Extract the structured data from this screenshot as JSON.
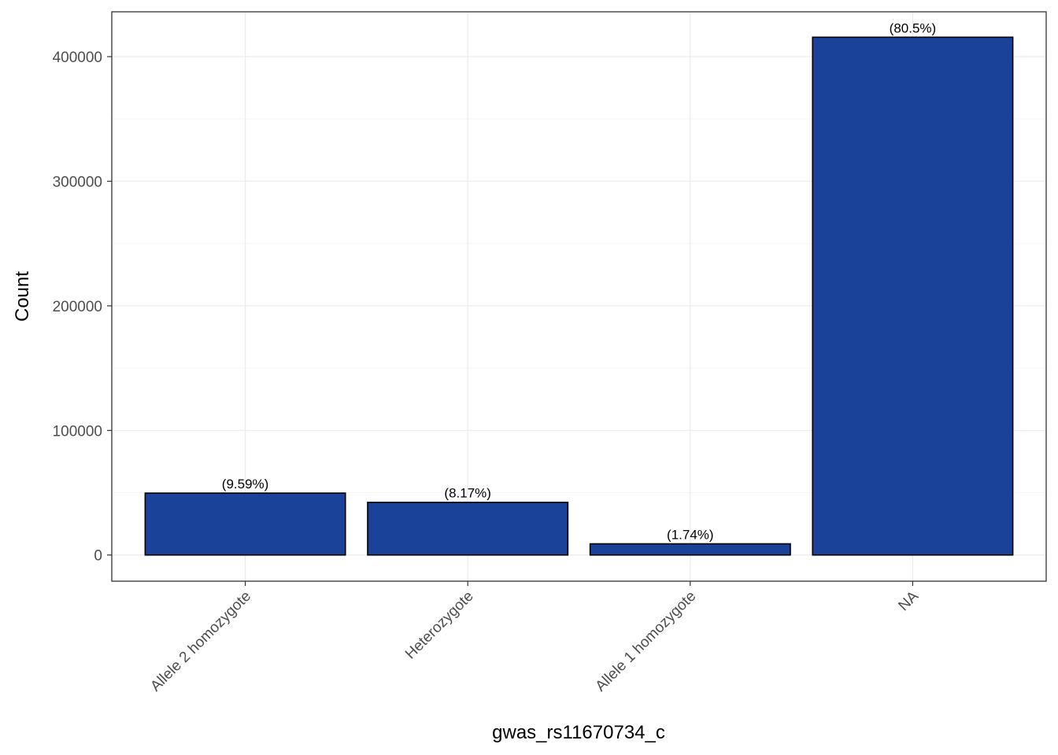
{
  "chart_data": {
    "type": "bar",
    "title": "",
    "xlabel": "gwas_rs11670734_c",
    "ylabel": "Count",
    "categories": [
      "Allele 2 homozygote",
      "Heterozygote",
      "Allele 1 homozygote",
      "NA"
    ],
    "values": [
      49700,
      42300,
      9000,
      415600
    ],
    "data_labels": [
      "(9.59%)",
      "(8.17%)",
      "(1.74%)",
      "(80.5%)"
    ],
    "ylim": [
      -21000,
      436000
    ],
    "yticks": [
      0,
      100000,
      200000,
      300000,
      400000
    ],
    "ytick_labels": [
      "0",
      "100000",
      "200000",
      "300000",
      "400000"
    ],
    "grid": true,
    "legend": "none",
    "colors": {
      "bar_fill": "#1a4298",
      "bar_outline": "#000000",
      "grid_major": "#ebebeb",
      "grid_minor": "#f5f5f5",
      "panel_border": "#333333",
      "tick_text": "#4d4d4d"
    }
  }
}
